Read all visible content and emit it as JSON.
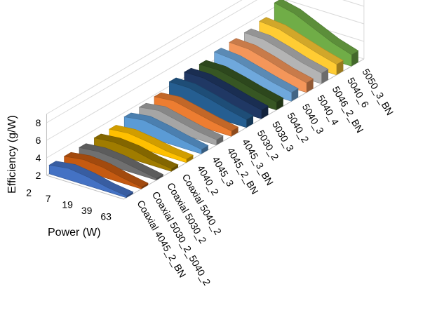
{
  "chart_data": {
    "type": "area",
    "title": "",
    "xlabel": "Power (W)",
    "ylabel": "Efficiency (g/W)",
    "x_ticks": [
      "2",
      "7",
      "19",
      "39",
      "63"
    ],
    "y_ticks": [
      "2",
      "4",
      "6",
      "8"
    ],
    "ylim": [
      2,
      9
    ],
    "grid": true,
    "legend": "none",
    "series": [
      {
        "name": "Coaxial 4045_2_BN",
        "color": "#4472C4",
        "values": [
          3.0,
          3.3,
          3.0,
          2.5,
          2.2
        ]
      },
      {
        "name": "Coaxial 5030_2_5040_2",
        "color": "#C55A11",
        "values": [
          3.0,
          3.3,
          3.1,
          2.6,
          2.2
        ]
      },
      {
        "name": "Coaxial 5030_2",
        "color": "#707070",
        "values": [
          3.0,
          3.2,
          3.0,
          2.6,
          2.2
        ]
      },
      {
        "name": "Coaxial 5040_2",
        "color": "#A07C00",
        "values": [
          3.1,
          3.3,
          3.1,
          2.6,
          2.3
        ]
      },
      {
        "name": "4040_2",
        "color": "#FFC000",
        "values": [
          3.1,
          3.3,
          3.0,
          2.6,
          2.4
        ]
      },
      {
        "name": "4045_3",
        "color": "#5B9BD5",
        "values": [
          3.5,
          3.8,
          3.4,
          2.9,
          2.5
        ]
      },
      {
        "name": "4045_2_BN",
        "color": "#A5A5A5",
        "values": [
          3.6,
          3.9,
          3.4,
          2.9,
          2.6
        ]
      },
      {
        "name": "4045_3_BN",
        "color": "#ED7D31",
        "values": [
          3.8,
          4.0,
          3.5,
          3.0,
          2.6
        ]
      },
      {
        "name": "5030_2",
        "color": "#255E91",
        "values": [
          4.5,
          4.5,
          4.0,
          3.4,
          2.9
        ]
      },
      {
        "name": "5030_3",
        "color": "#203864",
        "values": [
          4.6,
          4.6,
          4.1,
          3.5,
          3.0
        ]
      },
      {
        "name": "5040_2",
        "color": "#375623",
        "values": [
          4.5,
          4.5,
          4.0,
          3.4,
          2.9
        ]
      },
      {
        "name": "5040_3",
        "color": "#6FA8DC",
        "values": [
          4.9,
          4.7,
          4.1,
          3.5,
          3.0
        ]
      },
      {
        "name": "5040_4",
        "color": "#F4965A",
        "values": [
          5.0,
          4.9,
          4.3,
          3.6,
          3.1
        ]
      },
      {
        "name": "5046_2_BN",
        "color": "#B4B4B4",
        "values": [
          5.1,
          5.0,
          4.4,
          3.7,
          3.2
        ]
      },
      {
        "name": "5040_6",
        "color": "#FFCC33",
        "values": [
          5.4,
          5.2,
          4.5,
          3.8,
          3.2
        ]
      },
      {
        "name": "5050_3_BN",
        "color": "#70AD47",
        "values": [
          6.5,
          6.0,
          5.0,
          4.0,
          3.3
        ]
      }
    ]
  }
}
